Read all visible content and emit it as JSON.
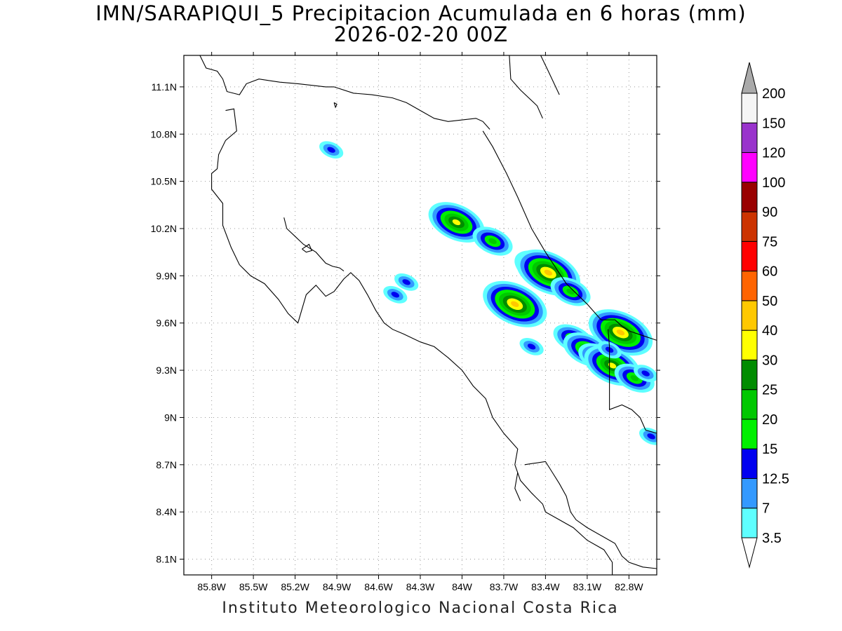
{
  "title_line1": "IMN/SARAPIQUI_5 Precipitacion Acumulada en 6 horas (mm)",
  "title_line2": "2026-02-20 00Z",
  "footer": "Instituto Meteorologico Nacional Costa Rica",
  "map": {
    "lon_range": [
      -86.0,
      -82.6
    ],
    "lat_range": [
      8.0,
      11.3
    ],
    "lon_ticks": [
      {
        "value": -85.8,
        "label": "85.8W"
      },
      {
        "value": -85.5,
        "label": "85.5W"
      },
      {
        "value": -85.2,
        "label": "85.2W"
      },
      {
        "value": -84.9,
        "label": "84.9W"
      },
      {
        "value": -84.6,
        "label": "84.6W"
      },
      {
        "value": -84.3,
        "label": "84.3W"
      },
      {
        "value": -84.0,
        "label": "84W"
      },
      {
        "value": -83.7,
        "label": "83.7W"
      },
      {
        "value": -83.4,
        "label": "83.4W"
      },
      {
        "value": -83.1,
        "label": "83.1W"
      },
      {
        "value": -82.8,
        "label": "82.8W"
      }
    ],
    "lat_ticks": [
      {
        "value": 8.1,
        "label": "8.1N"
      },
      {
        "value": 8.4,
        "label": "8.4N"
      },
      {
        "value": 8.7,
        "label": "8.7N"
      },
      {
        "value": 9.0,
        "label": "9N"
      },
      {
        "value": 9.3,
        "label": "9.3N"
      },
      {
        "value": 9.6,
        "label": "9.6N"
      },
      {
        "value": 9.9,
        "label": "9.9N"
      },
      {
        "value": 10.2,
        "label": "10.2N"
      },
      {
        "value": 10.5,
        "label": "10.5N"
      },
      {
        "value": 10.8,
        "label": "10.8N"
      },
      {
        "value": 11.1,
        "label": "11.1N"
      }
    ],
    "grid": "dotted",
    "coastlines": [
      [
        [
          -85.89,
          11.31
        ],
        [
          -85.84,
          11.22
        ],
        [
          -85.76,
          11.2
        ],
        [
          -85.72,
          11.15
        ],
        [
          -85.69,
          11.07
        ],
        [
          -85.6,
          11.05
        ],
        [
          -85.55,
          11.12
        ],
        [
          -85.46,
          11.15
        ],
        [
          -85.31,
          11.13
        ],
        [
          -85.18,
          11.12
        ],
        [
          -84.98,
          11.1
        ],
        [
          -84.92,
          11.1
        ],
        [
          -84.78,
          11.06
        ],
        [
          -84.65,
          11.05
        ],
        [
          -84.5,
          11.03
        ],
        [
          -84.4,
          11.0
        ],
        [
          -84.3,
          10.95
        ],
        [
          -84.2,
          10.9
        ],
        [
          -84.1,
          10.88
        ],
        [
          -83.9,
          10.9
        ],
        [
          -83.85,
          10.88
        ],
        [
          -83.8,
          10.83
        ]
      ],
      [
        [
          -83.66,
          11.3
        ],
        [
          -83.65,
          11.15
        ],
        [
          -83.58,
          11.08
        ],
        [
          -83.46,
          10.98
        ],
        [
          -83.42,
          10.9
        ]
      ],
      [
        [
          -83.44,
          11.31
        ],
        [
          -83.38,
          11.2
        ],
        [
          -83.3,
          11.05
        ]
      ],
      [
        [
          -85.7,
          10.95
        ],
        [
          -85.64,
          10.96
        ],
        [
          -85.62,
          10.82
        ],
        [
          -85.7,
          10.76
        ],
        [
          -85.75,
          10.67
        ],
        [
          -85.76,
          10.58
        ],
        [
          -85.8,
          10.55
        ],
        [
          -85.8,
          10.45
        ],
        [
          -85.72,
          10.36
        ],
        [
          -85.72,
          10.22
        ],
        [
          -85.66,
          10.08
        ],
        [
          -85.6,
          9.97
        ],
        [
          -85.52,
          9.9
        ],
        [
          -85.42,
          9.85
        ],
        [
          -85.32,
          9.75
        ],
        [
          -85.25,
          9.66
        ],
        [
          -85.18,
          9.6
        ],
        [
          -85.12,
          9.78
        ],
        [
          -85.05,
          9.84
        ],
        [
          -84.98,
          9.77
        ],
        [
          -84.92,
          9.8
        ],
        [
          -84.85,
          9.88
        ],
        [
          -84.8,
          9.92
        ],
        [
          -84.74,
          9.87
        ],
        [
          -84.68,
          9.78
        ],
        [
          -84.62,
          9.68
        ],
        [
          -84.56,
          9.6
        ],
        [
          -84.5,
          9.56
        ],
        [
          -84.42,
          9.53
        ],
        [
          -84.3,
          9.48
        ],
        [
          -84.2,
          9.45
        ],
        [
          -84.1,
          9.38
        ],
        [
          -84.0,
          9.3
        ],
        [
          -83.92,
          9.2
        ],
        [
          -83.83,
          9.12
        ],
        [
          -83.78,
          9.0
        ],
        [
          -83.7,
          8.9
        ],
        [
          -83.6,
          8.8
        ],
        [
          -83.62,
          8.7
        ],
        [
          -83.58,
          8.6
        ],
        [
          -83.5,
          8.52
        ],
        [
          -83.42,
          8.45
        ],
        [
          -83.4,
          8.4
        ],
        [
          -83.3,
          8.35
        ],
        [
          -83.2,
          8.3
        ],
        [
          -83.1,
          8.22
        ],
        [
          -82.98,
          8.16
        ],
        [
          -82.92,
          8.08
        ],
        [
          -82.92,
          8.0
        ]
      ],
      [
        [
          -85.28,
          10.27
        ],
        [
          -85.26,
          10.2
        ],
        [
          -85.2,
          10.15
        ],
        [
          -85.14,
          10.1
        ],
        [
          -85.05,
          10.05
        ],
        [
          -84.98,
          9.98
        ],
        [
          -84.93,
          9.96
        ],
        [
          -84.88,
          9.95
        ],
        [
          -84.85,
          9.93
        ]
      ],
      [
        [
          -85.15,
          10.07
        ],
        [
          -85.12,
          10.05
        ],
        [
          -85.08,
          10.06
        ],
        [
          -85.1,
          10.1
        ],
        [
          -85.15,
          10.07
        ]
      ],
      [
        [
          -83.55,
          8.7
        ],
        [
          -83.4,
          8.72
        ],
        [
          -83.35,
          8.65
        ],
        [
          -83.3,
          8.58
        ],
        [
          -83.25,
          8.5
        ],
        [
          -83.22,
          8.4
        ],
        [
          -83.18,
          8.35
        ],
        [
          -83.1,
          8.3
        ],
        [
          -83.0,
          8.25
        ],
        [
          -82.9,
          8.2
        ],
        [
          -82.85,
          8.12
        ],
        [
          -82.8,
          8.08
        ],
        [
          -82.7,
          8.05
        ],
        [
          -82.6,
          8.04
        ]
      ],
      [
        [
          -83.58,
          8.47
        ],
        [
          -83.62,
          8.55
        ],
        [
          -83.6,
          8.65
        ]
      ],
      [
        [
          -83.85,
          10.82
        ],
        [
          -83.78,
          10.72
        ],
        [
          -83.68,
          10.55
        ],
        [
          -83.6,
          10.4
        ],
        [
          -83.5,
          10.2
        ],
        [
          -83.4,
          10.05
        ],
        [
          -83.25,
          9.85
        ],
        [
          -83.1,
          9.72
        ],
        [
          -83.0,
          9.62
        ],
        [
          -82.9,
          9.62
        ],
        [
          -82.85,
          9.58
        ],
        [
          -82.8,
          9.55
        ],
        [
          -82.7,
          9.52
        ],
        [
          -82.6,
          9.49
        ]
      ],
      [
        [
          -82.95,
          9.56
        ],
        [
          -82.94,
          9.45
        ],
        [
          -82.94,
          9.3
        ],
        [
          -82.94,
          9.1
        ],
        [
          -82.94,
          9.05
        ],
        [
          -82.85,
          9.08
        ],
        [
          -82.78,
          9.05
        ],
        [
          -82.72,
          9.0
        ],
        [
          -82.68,
          8.92
        ],
        [
          -82.6,
          8.9
        ]
      ],
      [
        [
          -84.92,
          11.0
        ],
        [
          -84.9,
          10.99
        ],
        [
          -84.91,
          10.97
        ],
        [
          -84.92,
          11.0
        ]
      ]
    ]
  },
  "colorbar": {
    "levels": [
      "3.5",
      "7",
      "12.5",
      "15",
      "20",
      "25",
      "30",
      "40",
      "50",
      "60",
      "75",
      "90",
      "100",
      "120",
      "150",
      "200"
    ],
    "colors": [
      "#ffffff",
      "#5effff",
      "#3399ff",
      "#0000f0",
      "#00f000",
      "#00c800",
      "#008c00",
      "#ffff00",
      "#ffc800",
      "#ff6400",
      "#ff0000",
      "#cc3300",
      "#990000",
      "#ff00ff",
      "#9933cc",
      "#f5f5f5",
      "#aaaaaa"
    ]
  },
  "precip_cells": [
    {
      "lon": -84.04,
      "lat": 10.24,
      "value": 30
    },
    {
      "lon": -83.78,
      "lat": 10.12,
      "value": 20
    },
    {
      "lon": -83.45,
      "lat": 9.95,
      "value": 25
    },
    {
      "lon": -83.38,
      "lat": 9.92,
      "value": 40
    },
    {
      "lon": -83.62,
      "lat": 9.72,
      "value": 40
    },
    {
      "lon": -83.22,
      "lat": 9.8,
      "value": 20
    },
    {
      "lon": -84.94,
      "lat": 10.7,
      "value": 12.5
    },
    {
      "lon": -84.48,
      "lat": 9.78,
      "value": 12.5
    },
    {
      "lon": -84.4,
      "lat": 9.86,
      "value": 12.5
    },
    {
      "lon": -83.2,
      "lat": 9.5,
      "value": 20
    },
    {
      "lon": -83.1,
      "lat": 9.43,
      "value": 25
    },
    {
      "lon": -83.02,
      "lat": 9.38,
      "value": 20
    },
    {
      "lon": -82.86,
      "lat": 9.54,
      "value": 40
    },
    {
      "lon": -82.92,
      "lat": 9.33,
      "value": 30
    },
    {
      "lon": -82.76,
      "lat": 9.25,
      "value": 20
    },
    {
      "lon": -82.68,
      "lat": 9.28,
      "value": 12.5
    },
    {
      "lon": -82.64,
      "lat": 8.88,
      "value": 12.5
    },
    {
      "lon": -83.5,
      "lat": 9.45,
      "value": 12.5
    },
    {
      "lon": -82.94,
      "lat": 9.43,
      "value": 12.5
    }
  ]
}
